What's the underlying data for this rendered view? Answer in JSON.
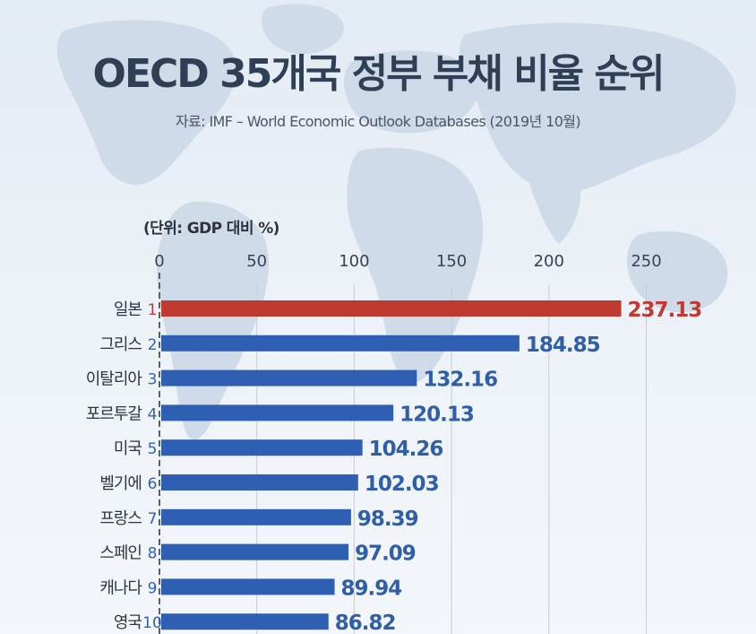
{
  "header": {
    "title": "OECD 35개국 정부 부채 비율 순위",
    "source": "자료: IMF – World Economic Outlook Databases (2019년 10월)",
    "unit": "(단위: GDP 대비 %)"
  },
  "colors": {
    "highlight": "#bf3b32",
    "bar": "#2f5fb2",
    "value_text": "#2f5fa6",
    "highlight_text": "#bf3b32",
    "rank_text": "#2f63b8",
    "grid": "#c3ccd7",
    "axis": "#5a5f68",
    "map": "#cfdbe8"
  },
  "chart_data": {
    "type": "bar",
    "orientation": "horizontal",
    "title": "OECD 35개국 정부 부채 비율 순위",
    "xlabel": "(단위: GDP 대비 %)",
    "ylabel": "",
    "xlim": [
      0,
      250
    ],
    "ticks": [
      0,
      50,
      100,
      150,
      200,
      250
    ],
    "grid": true,
    "categories": [
      "일본",
      "그리스",
      "이탈리아",
      "포르투갈",
      "미국",
      "벨기에",
      "프랑스",
      "스페인",
      "캐나다",
      "영국"
    ],
    "ranks": [
      "1",
      "2",
      "3",
      "4",
      "5",
      "6",
      "7",
      "8",
      "9",
      "10"
    ],
    "values": [
      237.13,
      184.85,
      132.16,
      120.13,
      104.26,
      102.03,
      98.39,
      97.09,
      89.94,
      86.82
    ],
    "value_labels": [
      "237.13",
      "184.85",
      "132.16",
      "120.13",
      "104.26",
      "102.03",
      "98.39",
      "97.09",
      "89.94",
      "86.82"
    ],
    "highlight_index": 0
  }
}
